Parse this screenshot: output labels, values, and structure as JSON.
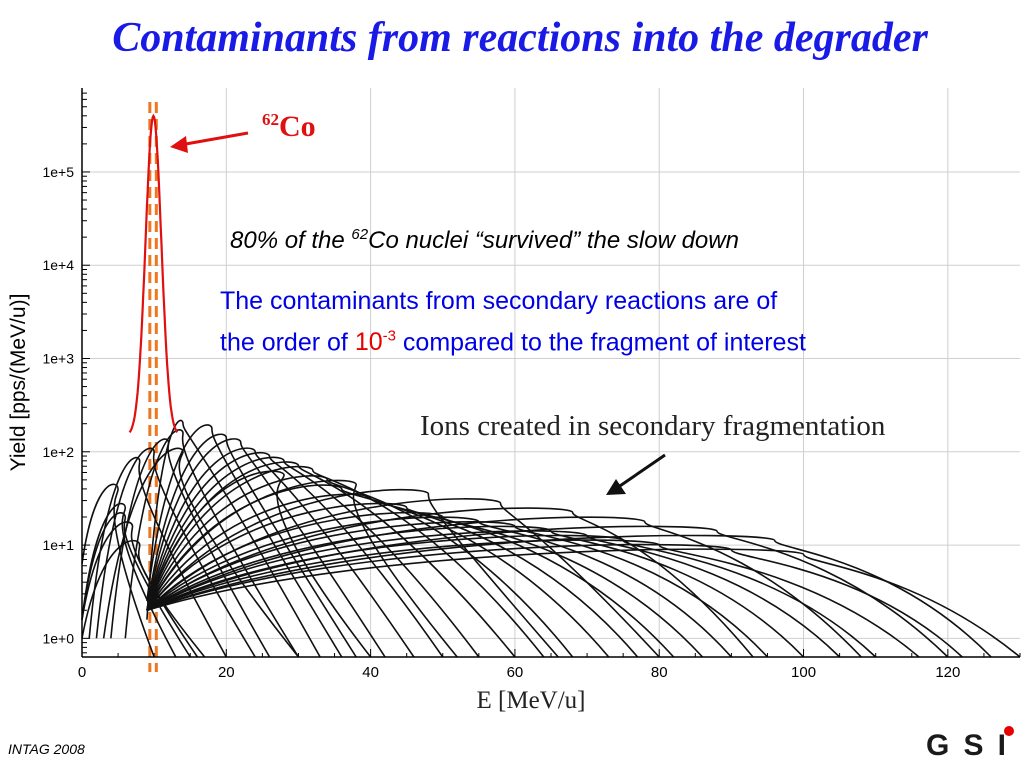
{
  "title": "Contaminants from reactions into the degrader",
  "annotations": {
    "note1_pre": "80% of the ",
    "note1_sup": "62",
    "note1_post": "Co nuclei “survived” the slow down",
    "note2_line1": "The contaminants from secondary reactions are of",
    "note2_pre": "the order of ",
    "note2_base": "10",
    "note2_exp": "-3",
    "note2_post": " compared to the fragment of interest",
    "peak_label_sup": "62",
    "peak_label": "Co",
    "ions_label": "Ions created in secondary fragmentation"
  },
  "footer": "INTAG 2008",
  "logo_text": "GSI",
  "colors": {
    "title": "#1a1ae6",
    "note2": "#0000e6",
    "highlight": "#e60000",
    "peak": "#e01010",
    "guide": "#ee7722",
    "curves": "#111111"
  },
  "chart_data": {
    "type": "line",
    "xlabel": "E [MeV/u]",
    "ylabel": "Yield [pps/(MeV/u)]",
    "x_ticks": [
      0,
      20,
      40,
      60,
      80,
      100,
      120
    ],
    "y_ticks": [
      "1e+0",
      "1e+1",
      "1e+2",
      "1e+3",
      "1e+4",
      "1e+5"
    ],
    "xlim": [
      0,
      130
    ],
    "ylim_log10": [
      -0.2,
      5.9
    ],
    "y_scale": "log",
    "grid": true,
    "guide_lines_x": [
      9.4,
      10.3
    ],
    "peak": {
      "center": 9.9,
      "sigma": 1.1,
      "peak_log10": 5.6,
      "base_log10": 2.17,
      "x_range": [
        6.6,
        13.2
      ]
    },
    "secondary_series": [
      [
        0,
        0.2,
        6,
        3,
        13,
        1.4
      ],
      [
        0,
        0.2,
        6,
        4,
        15,
        1.3
      ],
      [
        0,
        0.2,
        7,
        5,
        16,
        1.2
      ],
      [
        0,
        0.0,
        8,
        6,
        17,
        1.0
      ],
      [
        0,
        0.8,
        5,
        2,
        10,
        1.6
      ],
      [
        1,
        0.0,
        8,
        6,
        20,
        1.9
      ],
      [
        2,
        0.0,
        10,
        8,
        24,
        2.0
      ],
      [
        4,
        0.0,
        12,
        10,
        26,
        2.1
      ],
      [
        6,
        0.0,
        14,
        12,
        30,
        2.2
      ],
      [
        3,
        0.0,
        14,
        9,
        30,
        2.0
      ],
      [
        9,
        0.2,
        14,
        16,
        33,
        2.3
      ],
      [
        9,
        0.4,
        18,
        18,
        36,
        2.25
      ],
      [
        9,
        0.3,
        20,
        20,
        38,
        2.15
      ],
      [
        9,
        0.3,
        22,
        24,
        42,
        2.1
      ],
      [
        9,
        0.3,
        24,
        28,
        46,
        2.0
      ],
      [
        9,
        0.3,
        26,
        32,
        50,
        1.95
      ],
      [
        9,
        0.3,
        28,
        36,
        55,
        1.9
      ],
      [
        9,
        0.3,
        30,
        40,
        60,
        1.85
      ],
      [
        9,
        0.3,
        32,
        45,
        64,
        1.8
      ],
      [
        9,
        0.3,
        34,
        50,
        68,
        1.7
      ],
      [
        9,
        0.3,
        36,
        55,
        73,
        1.6
      ],
      [
        9,
        0.3,
        40,
        60,
        77,
        1.5
      ],
      [
        9,
        0.3,
        45,
        65,
        82,
        1.4
      ],
      [
        9,
        0.3,
        50,
        70,
        86,
        1.3
      ],
      [
        9,
        0.3,
        55,
        75,
        90,
        1.25
      ],
      [
        9,
        0.3,
        60,
        80,
        95,
        1.2
      ],
      [
        9,
        0.3,
        65,
        85,
        100,
        1.15
      ],
      [
        9,
        0.3,
        70,
        90,
        105,
        1.1
      ],
      [
        9,
        0.3,
        75,
        95,
        110,
        1.05
      ],
      [
        9,
        0.3,
        80,
        100,
        116,
        1.0
      ],
      [
        9,
        0.3,
        90,
        108,
        122,
        0.95
      ],
      [
        9,
        0.3,
        100,
        115,
        130,
        0.9
      ],
      [
        9,
        0.3,
        28,
        22,
        40,
        1.75
      ],
      [
        9,
        0.3,
        38,
        34,
        52,
        1.65
      ],
      [
        9,
        0.3,
        48,
        48,
        66,
        1.55
      ],
      [
        9,
        0.3,
        58,
        62,
        80,
        1.45
      ],
      [
        9,
        0.3,
        68,
        78,
        93,
        1.35
      ],
      [
        9,
        0.3,
        78,
        92,
        108,
        1.25
      ],
      [
        9,
        0.3,
        88,
        104,
        120,
        1.15
      ],
      [
        9,
        0.3,
        96,
        112,
        126,
        1.05
      ]
    ]
  }
}
